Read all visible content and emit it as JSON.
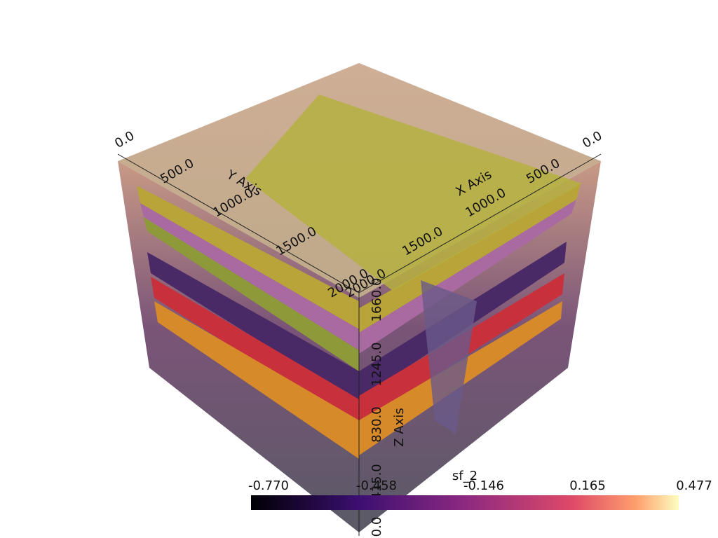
{
  "axes": {
    "x_title": "X Axis",
    "y_title": "Y Axis",
    "z_title": "Z Axis",
    "x_ticks": [
      "0.0",
      "500.0",
      "1000.0",
      "1500.0",
      "2000.0"
    ],
    "y_ticks": [
      "0.0",
      "500.0",
      "1000.0",
      "1500.0",
      "2000.0"
    ],
    "z_ticks": [
      "1660.0",
      "1245.0",
      "830.0",
      "415.0",
      "0.0"
    ]
  },
  "colorbar": {
    "title": "sf_2",
    "ticks": [
      "-0.770",
      "-0.458",
      "-0.146",
      "0.165",
      "0.477"
    ]
  }
}
